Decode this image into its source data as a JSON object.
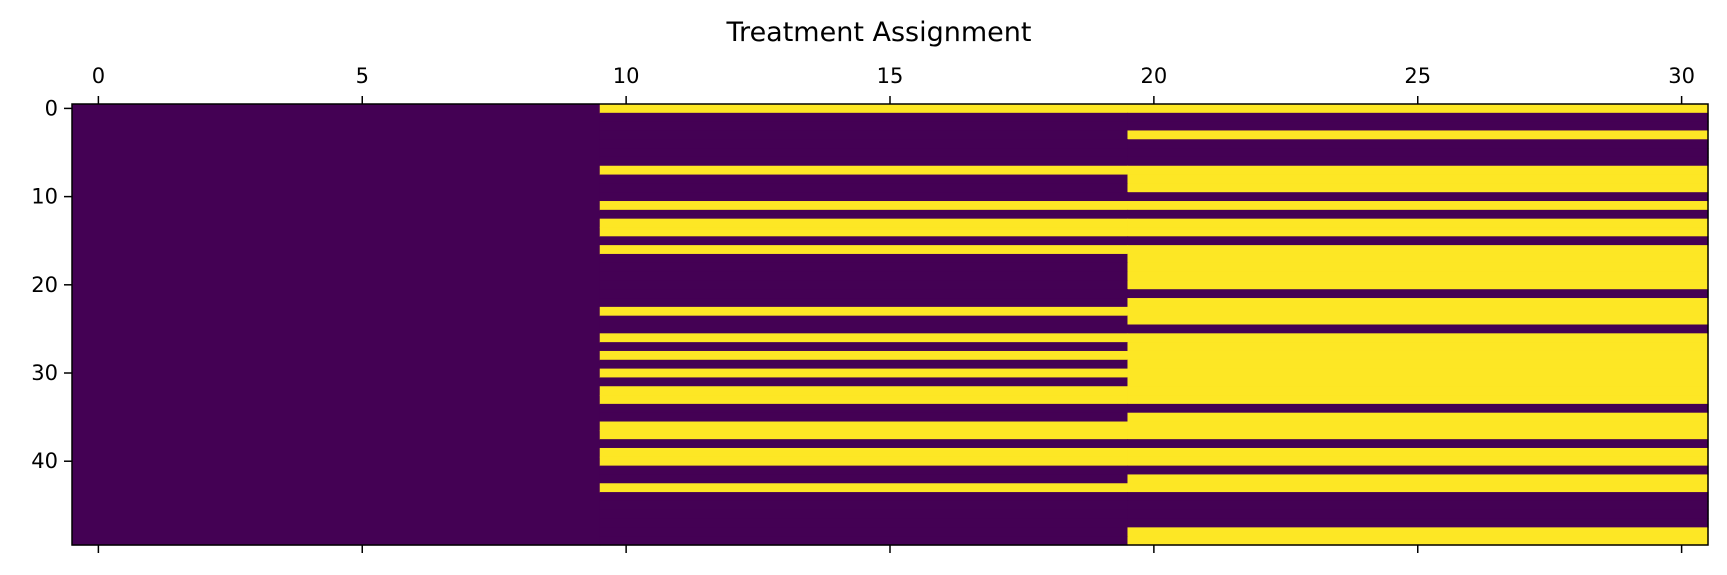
{
  "chart_data": {
    "type": "heatmap",
    "title": "Treatment Assignment",
    "xlabel": "",
    "ylabel": "",
    "n_rows": 50,
    "n_cols": 31,
    "x_ticks": [
      0,
      5,
      10,
      15,
      20,
      25,
      30
    ],
    "y_ticks": [
      0,
      10,
      20,
      30,
      40
    ],
    "x_axis_position": "top",
    "grid": false,
    "colormap": {
      "0": "#440154",
      "1": "#fde725"
    },
    "value_range": [
      0,
      1
    ],
    "description": "Binary matrix; value 1 = treated. Column groups: 0-9, 10-19, 20-30.",
    "rows_treated_cols_10_19": [
      0,
      7,
      11,
      13,
      14,
      16,
      23,
      26,
      28,
      30,
      32,
      33,
      36,
      37,
      39,
      40,
      43
    ],
    "rows_treated_cols_20_30": [
      0,
      3,
      7,
      8,
      9,
      11,
      13,
      14,
      16,
      17,
      18,
      19,
      20,
      22,
      23,
      24,
      26,
      27,
      28,
      29,
      30,
      31,
      32,
      33,
      35,
      36,
      37,
      39,
      40,
      42,
      43,
      48,
      49
    ]
  }
}
